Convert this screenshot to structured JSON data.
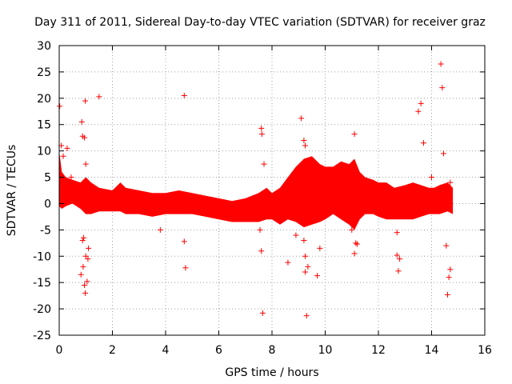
{
  "chart_data": {
    "type": "scatter",
    "title": "Day 311 of 2011, Sidereal Day-to-day VTEC variation (SDTVAR) for receiver graz",
    "xlabel": "GPS time / hours",
    "ylabel": "SDTVAR / TECUs",
    "xlim": [
      0,
      16
    ],
    "ylim": [
      -25,
      30
    ],
    "xticks": [
      "0",
      "2",
      "4",
      "6",
      "8",
      "10",
      "12",
      "14",
      "16"
    ],
    "yticks": [
      "30",
      "25",
      "20",
      "15",
      "10",
      "5",
      "0",
      "-5",
      "-10",
      "-15",
      "-20",
      "-25"
    ],
    "grid": true,
    "color": "#ff0000",
    "marker": "+",
    "envelope": {
      "x": [
        0,
        0.1,
        0.25,
        0.5,
        0.8,
        1.0,
        1.2,
        1.5,
        2.0,
        2.3,
        2.5,
        3.0,
        3.5,
        4.0,
        4.5,
        5.0,
        5.5,
        6.0,
        6.5,
        7.0,
        7.5,
        7.8,
        8.0,
        8.3,
        8.6,
        8.9,
        9.2,
        9.5,
        9.8,
        10.0,
        10.3,
        10.6,
        10.9,
        11.1,
        11.3,
        11.5,
        11.8,
        12.0,
        12.3,
        12.6,
        13.0,
        13.3,
        13.6,
        13.9,
        14.1,
        14.3,
        14.6,
        14.8
      ],
      "upper": [
        10,
        6,
        5,
        4.5,
        4,
        5,
        4,
        3,
        2.5,
        4,
        3,
        2.5,
        2,
        2,
        2.5,
        2,
        1.5,
        1,
        0.5,
        1,
        2,
        3,
        2,
        3,
        5,
        7,
        8.5,
        9,
        7.5,
        7,
        7,
        8,
        7.5,
        8.5,
        6,
        5,
        4.5,
        4,
        4,
        3,
        3.5,
        4,
        3.5,
        3,
        3,
        3.5,
        4,
        3
      ],
      "lower": [
        -0.5,
        -1,
        -0.5,
        0,
        -1,
        -2,
        -2,
        -1.5,
        -1.5,
        -1.5,
        -2,
        -2,
        -2.5,
        -2,
        -2,
        -2,
        -2.5,
        -3,
        -3.5,
        -3.5,
        -3.5,
        -3,
        -3,
        -4,
        -3,
        -3.5,
        -4.5,
        -4,
        -3.5,
        -3,
        -2,
        -3,
        -4,
        -5,
        -3,
        -2,
        -2,
        -2.5,
        -3,
        -3,
        -3,
        -3,
        -2.5,
        -2,
        -2,
        -2,
        -1.5,
        -2
      ]
    },
    "outliers": [
      [
        0.02,
        18.5
      ],
      [
        0.08,
        11
      ],
      [
        0.15,
        9
      ],
      [
        0.3,
        10.5
      ],
      [
        0.45,
        5
      ],
      [
        0.85,
        15.5
      ],
      [
        0.88,
        12.8
      ],
      [
        0.95,
        12.5
      ],
      [
        0.98,
        19.5
      ],
      [
        1.0,
        7.5
      ],
      [
        0.82,
        -13.5
      ],
      [
        0.9,
        -12
      ],
      [
        0.95,
        -15.5
      ],
      [
        0.98,
        -17
      ],
      [
        1.0,
        -10
      ],
      [
        1.05,
        -14.8
      ],
      [
        1.08,
        -10.5
      ],
      [
        0.88,
        -7
      ],
      [
        0.92,
        -6.5
      ],
      [
        1.1,
        -8.5
      ],
      [
        1.5,
        20.3
      ],
      [
        4.7,
        20.5
      ],
      [
        4.7,
        -7.2
      ],
      [
        4.75,
        -12.2
      ],
      [
        3.8,
        -5
      ],
      [
        7.6,
        14.3
      ],
      [
        7.62,
        13.2
      ],
      [
        7.7,
        7.5
      ],
      [
        7.6,
        -9
      ],
      [
        7.65,
        -20.8
      ],
      [
        7.55,
        -5
      ],
      [
        8.6,
        -11.2
      ],
      [
        8.9,
        -6
      ],
      [
        9.1,
        16.2
      ],
      [
        9.2,
        12
      ],
      [
        9.25,
        11
      ],
      [
        9.2,
        -7
      ],
      [
        9.25,
        -13
      ],
      [
        9.3,
        -21.3
      ],
      [
        9.35,
        -12
      ],
      [
        9.25,
        -10
      ],
      [
        9.7,
        -13.7
      ],
      [
        9.8,
        -8.5
      ],
      [
        11.1,
        13.2
      ],
      [
        11.15,
        -7.5
      ],
      [
        11.2,
        -7.7
      ],
      [
        11.1,
        -9.5
      ],
      [
        11.0,
        -5
      ],
      [
        12.7,
        -9.8
      ],
      [
        12.75,
        -12.8
      ],
      [
        12.7,
        -5.5
      ],
      [
        12.8,
        -10.5
      ],
      [
        13.5,
        17.5
      ],
      [
        13.6,
        19
      ],
      [
        13.7,
        11.5
      ],
      [
        14.0,
        5
      ],
      [
        14.35,
        26.5
      ],
      [
        14.4,
        22
      ],
      [
        14.45,
        9.5
      ],
      [
        14.6,
        -17.3
      ],
      [
        14.65,
        -14
      ],
      [
        14.7,
        -12.5
      ],
      [
        14.55,
        -8
      ],
      [
        14.7,
        4
      ]
    ]
  }
}
